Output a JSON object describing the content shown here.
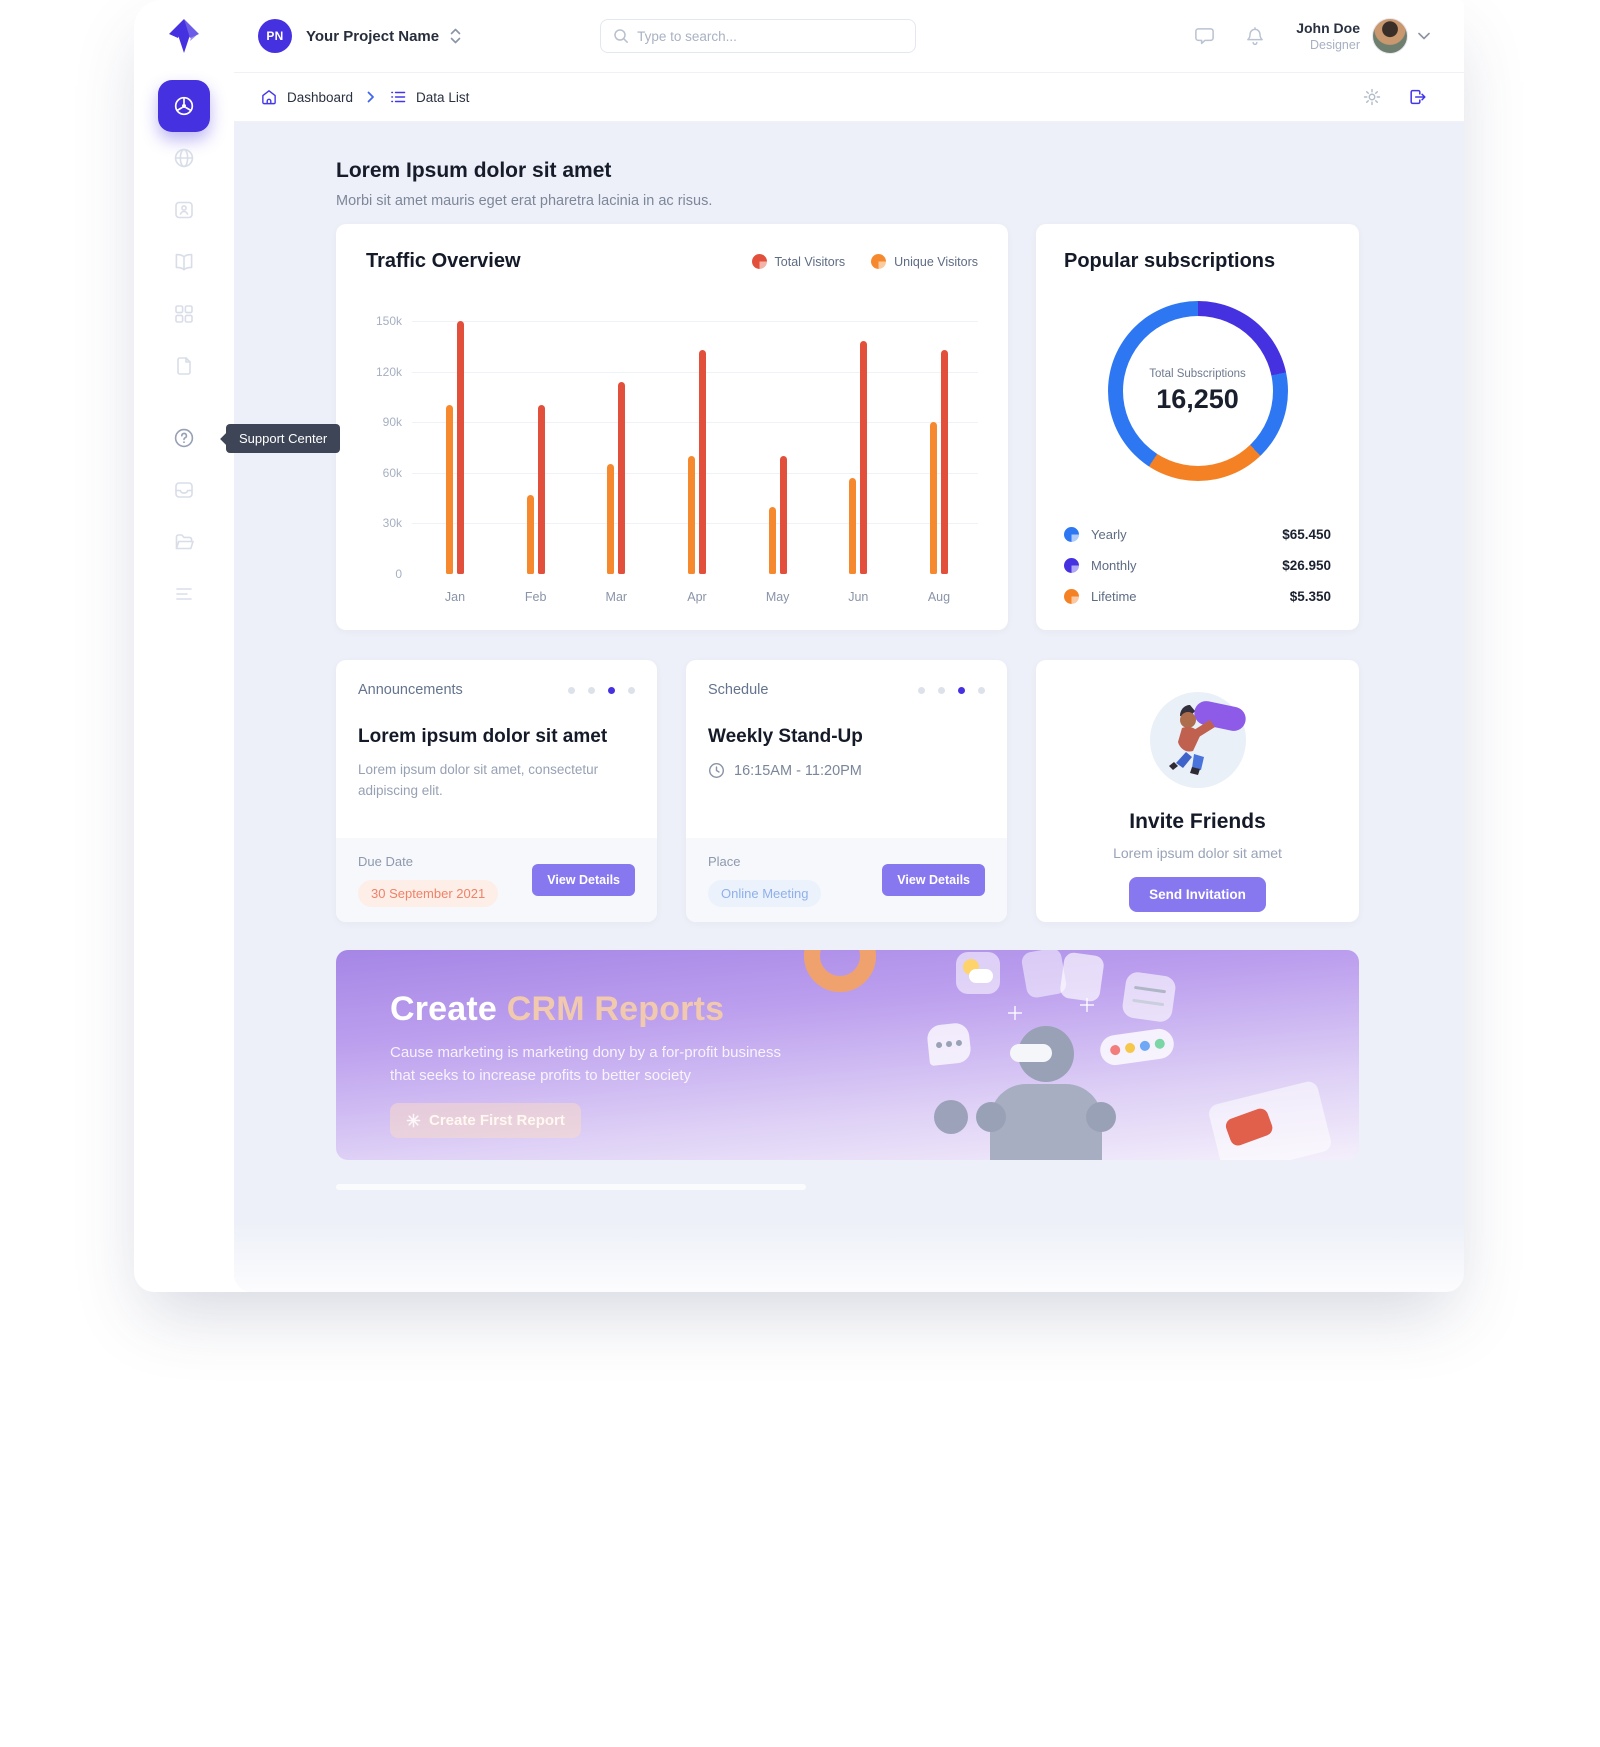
{
  "topbar": {
    "project_initials": "PN",
    "project_name": "Your Project Name",
    "search_placeholder": "Type to search...",
    "user_name": "John Doe",
    "user_role": "Designer"
  },
  "breadcrumb": {
    "items": [
      {
        "label": "Dashboard"
      },
      {
        "label": "Data List"
      }
    ]
  },
  "sidebar": {
    "tooltip": "Support Center",
    "items": [
      "dashboard",
      "globe",
      "id-badge",
      "book",
      "grid",
      "document",
      "help",
      "inbox",
      "folder",
      "list"
    ]
  },
  "page_header": {
    "title": "Lorem Ipsum dolor sit amet",
    "subtitle": "Morbi sit amet mauris eget erat pharetra lacinia in ac risus."
  },
  "traffic_card": {
    "title": "Traffic Overview",
    "legend": [
      {
        "label": "Total Visitors",
        "color": "#E2503C",
        "light": "#F4B3A9"
      },
      {
        "label": "Unique Visitors",
        "color": "#F6892E",
        "light": "#FBCBA0"
      }
    ]
  },
  "subscriptions_card": {
    "title": "Popular subscriptions",
    "legend": [
      {
        "label": "Yearly",
        "value": "$65.450",
        "color": "#2E77F2",
        "light": "#AECBF9"
      },
      {
        "label": "Monthly",
        "value": "$26.950",
        "color": "#4531E0",
        "light": "#B0A7F6"
      },
      {
        "label": "Lifetime",
        "value": "$5.350",
        "color": "#F58125",
        "light": "#FAC9A4"
      }
    ]
  },
  "chart_data": [
    {
      "type": "bar",
      "title": "Traffic Overview",
      "categories": [
        "Jan",
        "Feb",
        "Mar",
        "Apr",
        "May",
        "Jun",
        "Aug"
      ],
      "series": [
        {
          "name": "Total Visitors",
          "color": "#E2503C",
          "values": [
            150000,
            100000,
            114000,
            133000,
            70000,
            138000,
            133000
          ]
        },
        {
          "name": "Unique Visitors",
          "color": "#F6892E",
          "values": [
            100000,
            47000,
            65000,
            70000,
            40000,
            57000,
            90000
          ]
        }
      ],
      "xlabel": "",
      "ylabel": "",
      "ylim": [
        0,
        150000
      ],
      "yticks": [
        "150k",
        "120k",
        "90k",
        "60k",
        "30k",
        "0"
      ],
      "grid": true,
      "legend_position": "top-right"
    },
    {
      "type": "pie",
      "title": "Popular subscriptions",
      "labels": [
        "Yearly",
        "Monthly",
        "Lifetime"
      ],
      "values_percent": [
        56,
        22,
        22
      ],
      "amounts": [
        "$65.450",
        "$26.950",
        "$5.350"
      ],
      "colors": [
        "#2E77F2",
        "#4531E0",
        "#F58125"
      ],
      "center_label": "Total Subscriptions",
      "center_value": "16,250",
      "arc_segments": [
        {
          "color": "#4531E0",
          "from": 0,
          "to": 78
        },
        {
          "color": "#2E77F2",
          "from": 78,
          "to": 136
        },
        {
          "color": "#F58125",
          "from": 136,
          "to": 213
        },
        {
          "color": "#2E77F2",
          "from": 213,
          "to": 360
        }
      ]
    }
  ],
  "announcements_card": {
    "header": "Announcements",
    "dots": 4,
    "active_dot": 2,
    "title": "Lorem ipsum dolor sit amet",
    "body": "Lorem ipsum dolor sit amet, consectetur adipiscing elit.",
    "footer_label": "Due Date",
    "footer_value": "30 September 2021",
    "button": "View Details"
  },
  "schedule_card": {
    "header": "Schedule",
    "dots": 4,
    "active_dot": 2,
    "title": "Weekly Stand-Up",
    "time": "16:15AM - 11:20PM",
    "footer_label": "Place",
    "footer_value": "Online Meeting",
    "button": "View Details"
  },
  "invite_card": {
    "title": "Invite Friends",
    "subtitle": "Lorem ipsum dolor sit amet",
    "button": "Send Invitation"
  },
  "banner": {
    "title_main": "Create ",
    "title_accent": "CRM Reports",
    "description_line1": "Cause marketing is marketing dony by a for-profit business",
    "description_line2": "that seeks to increase profits to better society",
    "button": "Create First Report"
  },
  "colors": {
    "primary": "#4531E0",
    "action_purple": "#8778F0",
    "content_bg": "#EDF0F8",
    "total_red": "#E2503C",
    "unique_orange": "#F6892E",
    "donut_blue": "#2E77F2",
    "donut_orange": "#F58125"
  }
}
